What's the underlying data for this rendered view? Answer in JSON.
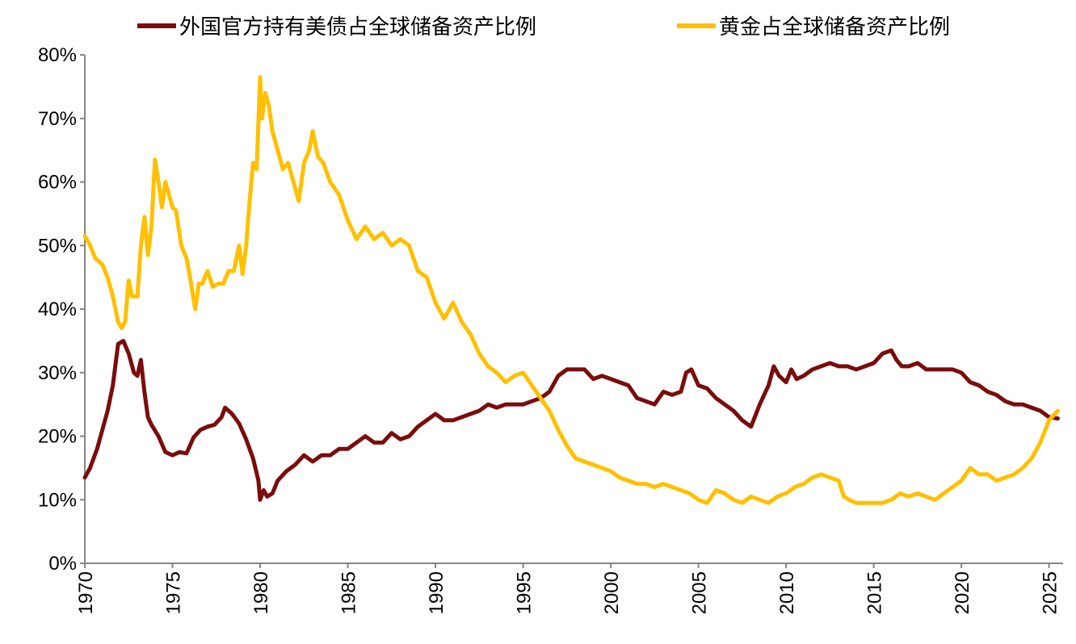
{
  "chart_data": {
    "type": "line",
    "title": "",
    "xlabel": "",
    "ylabel": "",
    "xlim": [
      1970,
      2025.8
    ],
    "ylim": [
      0,
      80
    ],
    "y_ticks": [
      0,
      10,
      20,
      30,
      40,
      50,
      60,
      70,
      80
    ],
    "y_tick_labels": [
      "0%",
      "10%",
      "20%",
      "30%",
      "40%",
      "50%",
      "60%",
      "70%",
      "80%"
    ],
    "x_ticks": [
      1970,
      1975,
      1980,
      1985,
      1990,
      1995,
      2000,
      2005,
      2010,
      2015,
      2020,
      2025
    ],
    "x_tick_labels": [
      "1970",
      "1975",
      "1980",
      "1985",
      "1990",
      "1995",
      "2000",
      "2005",
      "2010",
      "2015",
      "2020",
      "2025"
    ],
    "grid": false,
    "legend_position": "top-center",
    "series": [
      {
        "name": "外国官方持有美债占全球储备资产比例",
        "color": "#7b0c0c",
        "x": [
          1970.0,
          1970.3,
          1970.7,
          1971.0,
          1971.3,
          1971.6,
          1971.9,
          1972.2,
          1972.5,
          1972.8,
          1973.0,
          1973.2,
          1973.4,
          1973.6,
          1973.8,
          1974.2,
          1974.6,
          1975.0,
          1975.4,
          1975.8,
          1976.2,
          1976.6,
          1977.0,
          1977.4,
          1977.8,
          1978.0,
          1978.4,
          1978.8,
          1979.2,
          1979.6,
          1979.9,
          1980.0,
          1980.2,
          1980.4,
          1980.7,
          1981.0,
          1981.5,
          1982.0,
          1982.5,
          1983.0,
          1983.5,
          1984.0,
          1984.5,
          1985.0,
          1985.5,
          1986.0,
          1986.5,
          1987.0,
          1987.5,
          1988.0,
          1988.5,
          1989.0,
          1989.5,
          1990.0,
          1990.5,
          1991.0,
          1991.5,
          1992.0,
          1992.5,
          1993.0,
          1993.5,
          1994.0,
          1994.5,
          1995.0,
          1995.5,
          1996.0,
          1996.5,
          1997.0,
          1997.5,
          1998.0,
          1998.5,
          1999.0,
          1999.5,
          2000.0,
          2000.5,
          2001.0,
          2001.5,
          2002.0,
          2002.5,
          2003.0,
          2003.5,
          2004.0,
          2004.3,
          2004.6,
          2005.0,
          2005.5,
          2006.0,
          2006.5,
          2007.0,
          2007.5,
          2008.0,
          2008.5,
          2009.0,
          2009.3,
          2009.6,
          2010.0,
          2010.3,
          2010.6,
          2011.0,
          2011.5,
          2012.0,
          2012.5,
          2013.0,
          2013.5,
          2014.0,
          2014.5,
          2015.0,
          2015.5,
          2016.0,
          2016.3,
          2016.6,
          2017.0,
          2017.5,
          2018.0,
          2018.5,
          2019.0,
          2019.5,
          2020.0,
          2020.5,
          2021.0,
          2021.5,
          2022.0,
          2022.5,
          2023.0,
          2023.5,
          2024.0,
          2024.5,
          2025.0,
          2025.5
        ],
        "values": [
          13.5,
          15,
          18,
          21,
          24,
          28,
          34.5,
          35,
          33,
          30,
          29.5,
          32,
          27,
          23,
          21.8,
          20,
          17.5,
          17,
          17.5,
          17.3,
          19.8,
          21,
          21.5,
          21.8,
          23,
          24.5,
          23.5,
          22,
          19.5,
          16.5,
          13,
          10,
          11.5,
          10.5,
          11,
          13,
          14.5,
          15.5,
          17,
          16,
          17,
          17,
          18,
          18,
          19,
          20,
          19,
          19,
          20.5,
          19.5,
          20,
          21.5,
          22.5,
          23.5,
          22.5,
          22.5,
          23,
          23.5,
          24,
          25,
          24.5,
          25,
          25,
          25,
          25.5,
          26,
          27,
          29.5,
          30.5,
          30.5,
          30.5,
          29,
          29.5,
          29,
          28.5,
          28,
          26,
          25.5,
          25,
          27,
          26.5,
          27,
          30,
          30.5,
          28,
          27.5,
          26,
          25,
          24,
          22.5,
          21.5,
          25,
          28,
          31,
          29.5,
          28.5,
          30.5,
          29,
          29.5,
          30.5,
          31,
          31.5,
          31,
          31,
          30.5,
          31,
          31.5,
          33,
          33.5,
          32,
          31,
          31,
          31.5,
          30.5,
          30.5,
          30.5,
          30.5,
          30,
          28.5,
          28,
          27,
          26.5,
          25.5,
          25,
          25,
          24.5,
          24,
          23,
          22.8
        ]
      },
      {
        "name": "黄金占全球储备资产比例",
        "color": "#ffc000",
        "x": [
          1970.0,
          1970.3,
          1970.6,
          1971.0,
          1971.3,
          1971.6,
          1971.9,
          1972.1,
          1972.3,
          1972.5,
          1972.7,
          1973.0,
          1973.2,
          1973.4,
          1973.6,
          1973.8,
          1974.0,
          1974.2,
          1974.4,
          1974.6,
          1974.8,
          1975.0,
          1975.2,
          1975.5,
          1975.8,
          1976.0,
          1976.3,
          1976.5,
          1976.7,
          1977.0,
          1977.3,
          1977.6,
          1977.9,
          1978.2,
          1978.5,
          1978.8,
          1979.0,
          1979.2,
          1979.4,
          1979.6,
          1979.8,
          1980.0,
          1980.1,
          1980.3,
          1980.5,
          1980.7,
          1981.0,
          1981.3,
          1981.6,
          1981.9,
          1982.2,
          1982.5,
          1982.8,
          1983.0,
          1983.3,
          1983.6,
          1984.0,
          1984.5,
          1985.0,
          1985.5,
          1986.0,
          1986.5,
          1987.0,
          1987.5,
          1988.0,
          1988.5,
          1989.0,
          1989.5,
          1990.0,
          1990.5,
          1991.0,
          1991.5,
          1992.0,
          1992.5,
          1993.0,
          1993.5,
          1994.0,
          1994.5,
          1995.0,
          1995.5,
          1996.0,
          1996.5,
          1997.0,
          1997.5,
          1998.0,
          1998.5,
          1999.0,
          1999.5,
          2000.0,
          2000.5,
          2001.0,
          2001.5,
          2002.0,
          2002.5,
          2003.0,
          2003.5,
          2004.0,
          2004.5,
          2005.0,
          2005.5,
          2006.0,
          2006.5,
          2007.0,
          2007.5,
          2008.0,
          2008.5,
          2009.0,
          2009.5,
          2010.0,
          2010.5,
          2011.0,
          2011.5,
          2012.0,
          2012.5,
          2013.0,
          2013.3,
          2013.6,
          2014.0,
          2014.5,
          2015.0,
          2015.5,
          2016.0,
          2016.5,
          2017.0,
          2017.5,
          2018.0,
          2018.5,
          2019.0,
          2019.5,
          2020.0,
          2020.5,
          2021.0,
          2021.5,
          2022.0,
          2022.5,
          2023.0,
          2023.5,
          2024.0,
          2024.5,
          2025.0,
          2025.5
        ],
        "values": [
          51.5,
          50,
          48,
          47,
          45,
          42,
          38,
          37,
          38,
          44.5,
          42,
          42,
          50,
          54.5,
          48.5,
          53,
          63.5,
          60,
          56,
          60,
          58,
          56,
          55.5,
          50,
          48,
          45,
          40,
          44,
          44,
          46,
          43.5,
          44,
          44,
          46,
          46,
          50,
          45.5,
          50,
          57,
          63,
          62,
          76.5,
          70,
          74,
          72,
          68,
          65,
          62,
          63,
          60,
          57,
          63,
          65,
          68,
          64,
          63,
          60,
          58,
          54,
          51,
          53,
          51,
          52,
          50,
          51,
          50,
          46,
          45,
          41,
          38.5,
          41,
          38,
          36,
          33,
          31,
          30,
          28.5,
          29.5,
          30,
          28,
          26,
          24,
          21,
          18.5,
          16.5,
          16,
          15.5,
          15,
          14.5,
          13.5,
          13,
          12.5,
          12.5,
          12,
          12.5,
          12,
          11.5,
          11,
          10,
          9.5,
          11.5,
          11,
          10,
          9.5,
          10.5,
          10,
          9.5,
          10.5,
          11,
          12,
          12.5,
          13.5,
          14,
          13.5,
          13,
          10.5,
          10,
          9.5,
          9.5,
          9.5,
          9.5,
          10,
          11,
          10.5,
          11,
          10.5,
          10,
          11,
          12,
          13,
          15,
          14,
          14,
          13,
          13.5,
          14,
          15,
          16.5,
          19,
          22.5,
          24
        ]
      }
    ]
  }
}
